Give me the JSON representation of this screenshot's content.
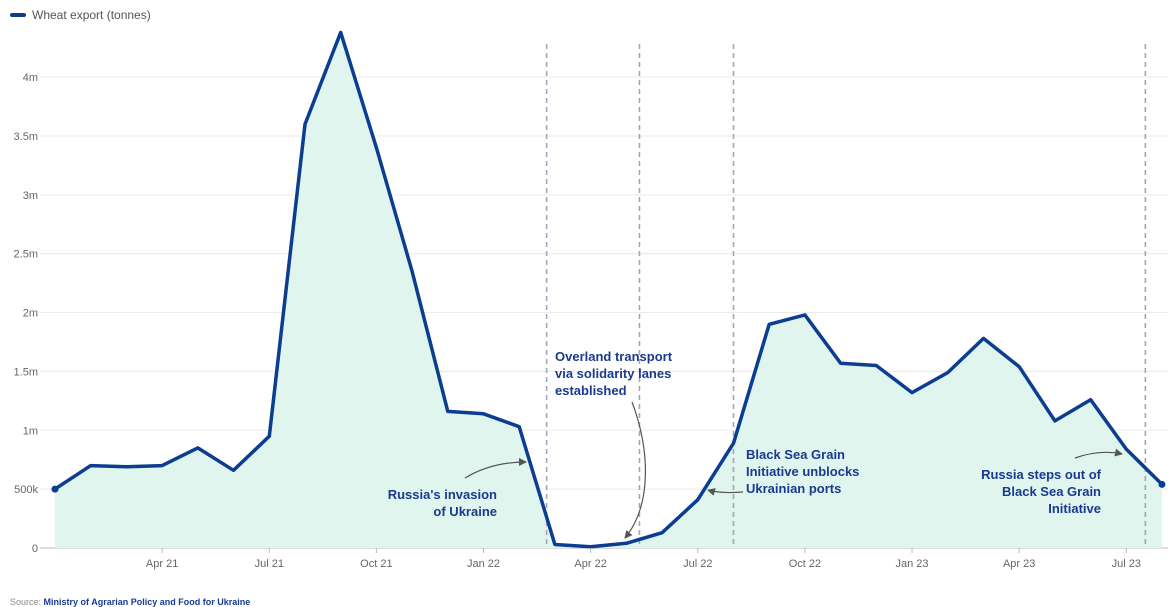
{
  "legend": {
    "label": "Wheat export (tonnes)",
    "color": "#0b3d91"
  },
  "source": {
    "prefix": "Source:",
    "name": "Ministry of Agrarian Policy and Food for Ukraine"
  },
  "chart_data": {
    "type": "area",
    "series": [
      {
        "name": "Wheat export (tonnes)",
        "color": "#0b3d91",
        "fill": "#dff5ee",
        "x": [
          "2021-01",
          "2021-02",
          "2021-03",
          "2021-04",
          "2021-05",
          "2021-06",
          "2021-07",
          "2021-08",
          "2021-09",
          "2021-10",
          "2021-11",
          "2021-12",
          "2022-01",
          "2022-02",
          "2022-03",
          "2022-04",
          "2022-05",
          "2022-06",
          "2022-07",
          "2022-08",
          "2022-09",
          "2022-10",
          "2022-11",
          "2022-12",
          "2023-01",
          "2023-02",
          "2023-03",
          "2023-04",
          "2023-05",
          "2023-06",
          "2023-07",
          "2023-08"
        ],
        "values": [
          500000,
          700000,
          690000,
          700000,
          850000,
          660000,
          950000,
          3600000,
          4380000,
          3400000,
          2350000,
          1160000,
          1140000,
          1030000,
          30000,
          10000,
          40000,
          130000,
          410000,
          890000,
          1900000,
          1980000,
          1570000,
          1550000,
          1320000,
          1490000,
          1780000,
          1540000,
          1080000,
          1260000,
          840000,
          540000
        ]
      }
    ],
    "x_ticks": [
      "Apr 21",
      "Jul 21",
      "Oct 21",
      "Jan 22",
      "Apr 22",
      "Jul 22",
      "Oct 22",
      "Jan 23",
      "Apr 23",
      "Jul 23"
    ],
    "x_tick_dates": [
      "2021-04",
      "2021-07",
      "2021-10",
      "2022-01",
      "2022-04",
      "2022-07",
      "2022-10",
      "2023-01",
      "2023-04",
      "2023-07"
    ],
    "y_ticks": [
      0,
      500000,
      1000000,
      1500000,
      2000000,
      2500000,
      3000000,
      3500000,
      4000000
    ],
    "y_tick_labels": [
      "0",
      "500k",
      "1m",
      "1.5m",
      "2m",
      "2.5m",
      "3m",
      "3.5m",
      "4m"
    ],
    "ylim": [
      0,
      4400000
    ],
    "grid": true,
    "legend_position": "top-left",
    "events": [
      {
        "date": "2022-02-24",
        "lines": [
          "Russia's invasion",
          "of Ukraine"
        ]
      },
      {
        "date": "2022-05-12",
        "lines": [
          "Overland transport",
          "via solidarity lanes",
          "established"
        ]
      },
      {
        "date": "2022-08-01",
        "lines": [
          "Black Sea Grain",
          "Initiative unblocks",
          "Ukrainian ports"
        ]
      },
      {
        "date": "2023-07-17",
        "lines": [
          "Russia steps out of",
          "Black Sea Grain",
          "Initiative"
        ]
      }
    ]
  }
}
